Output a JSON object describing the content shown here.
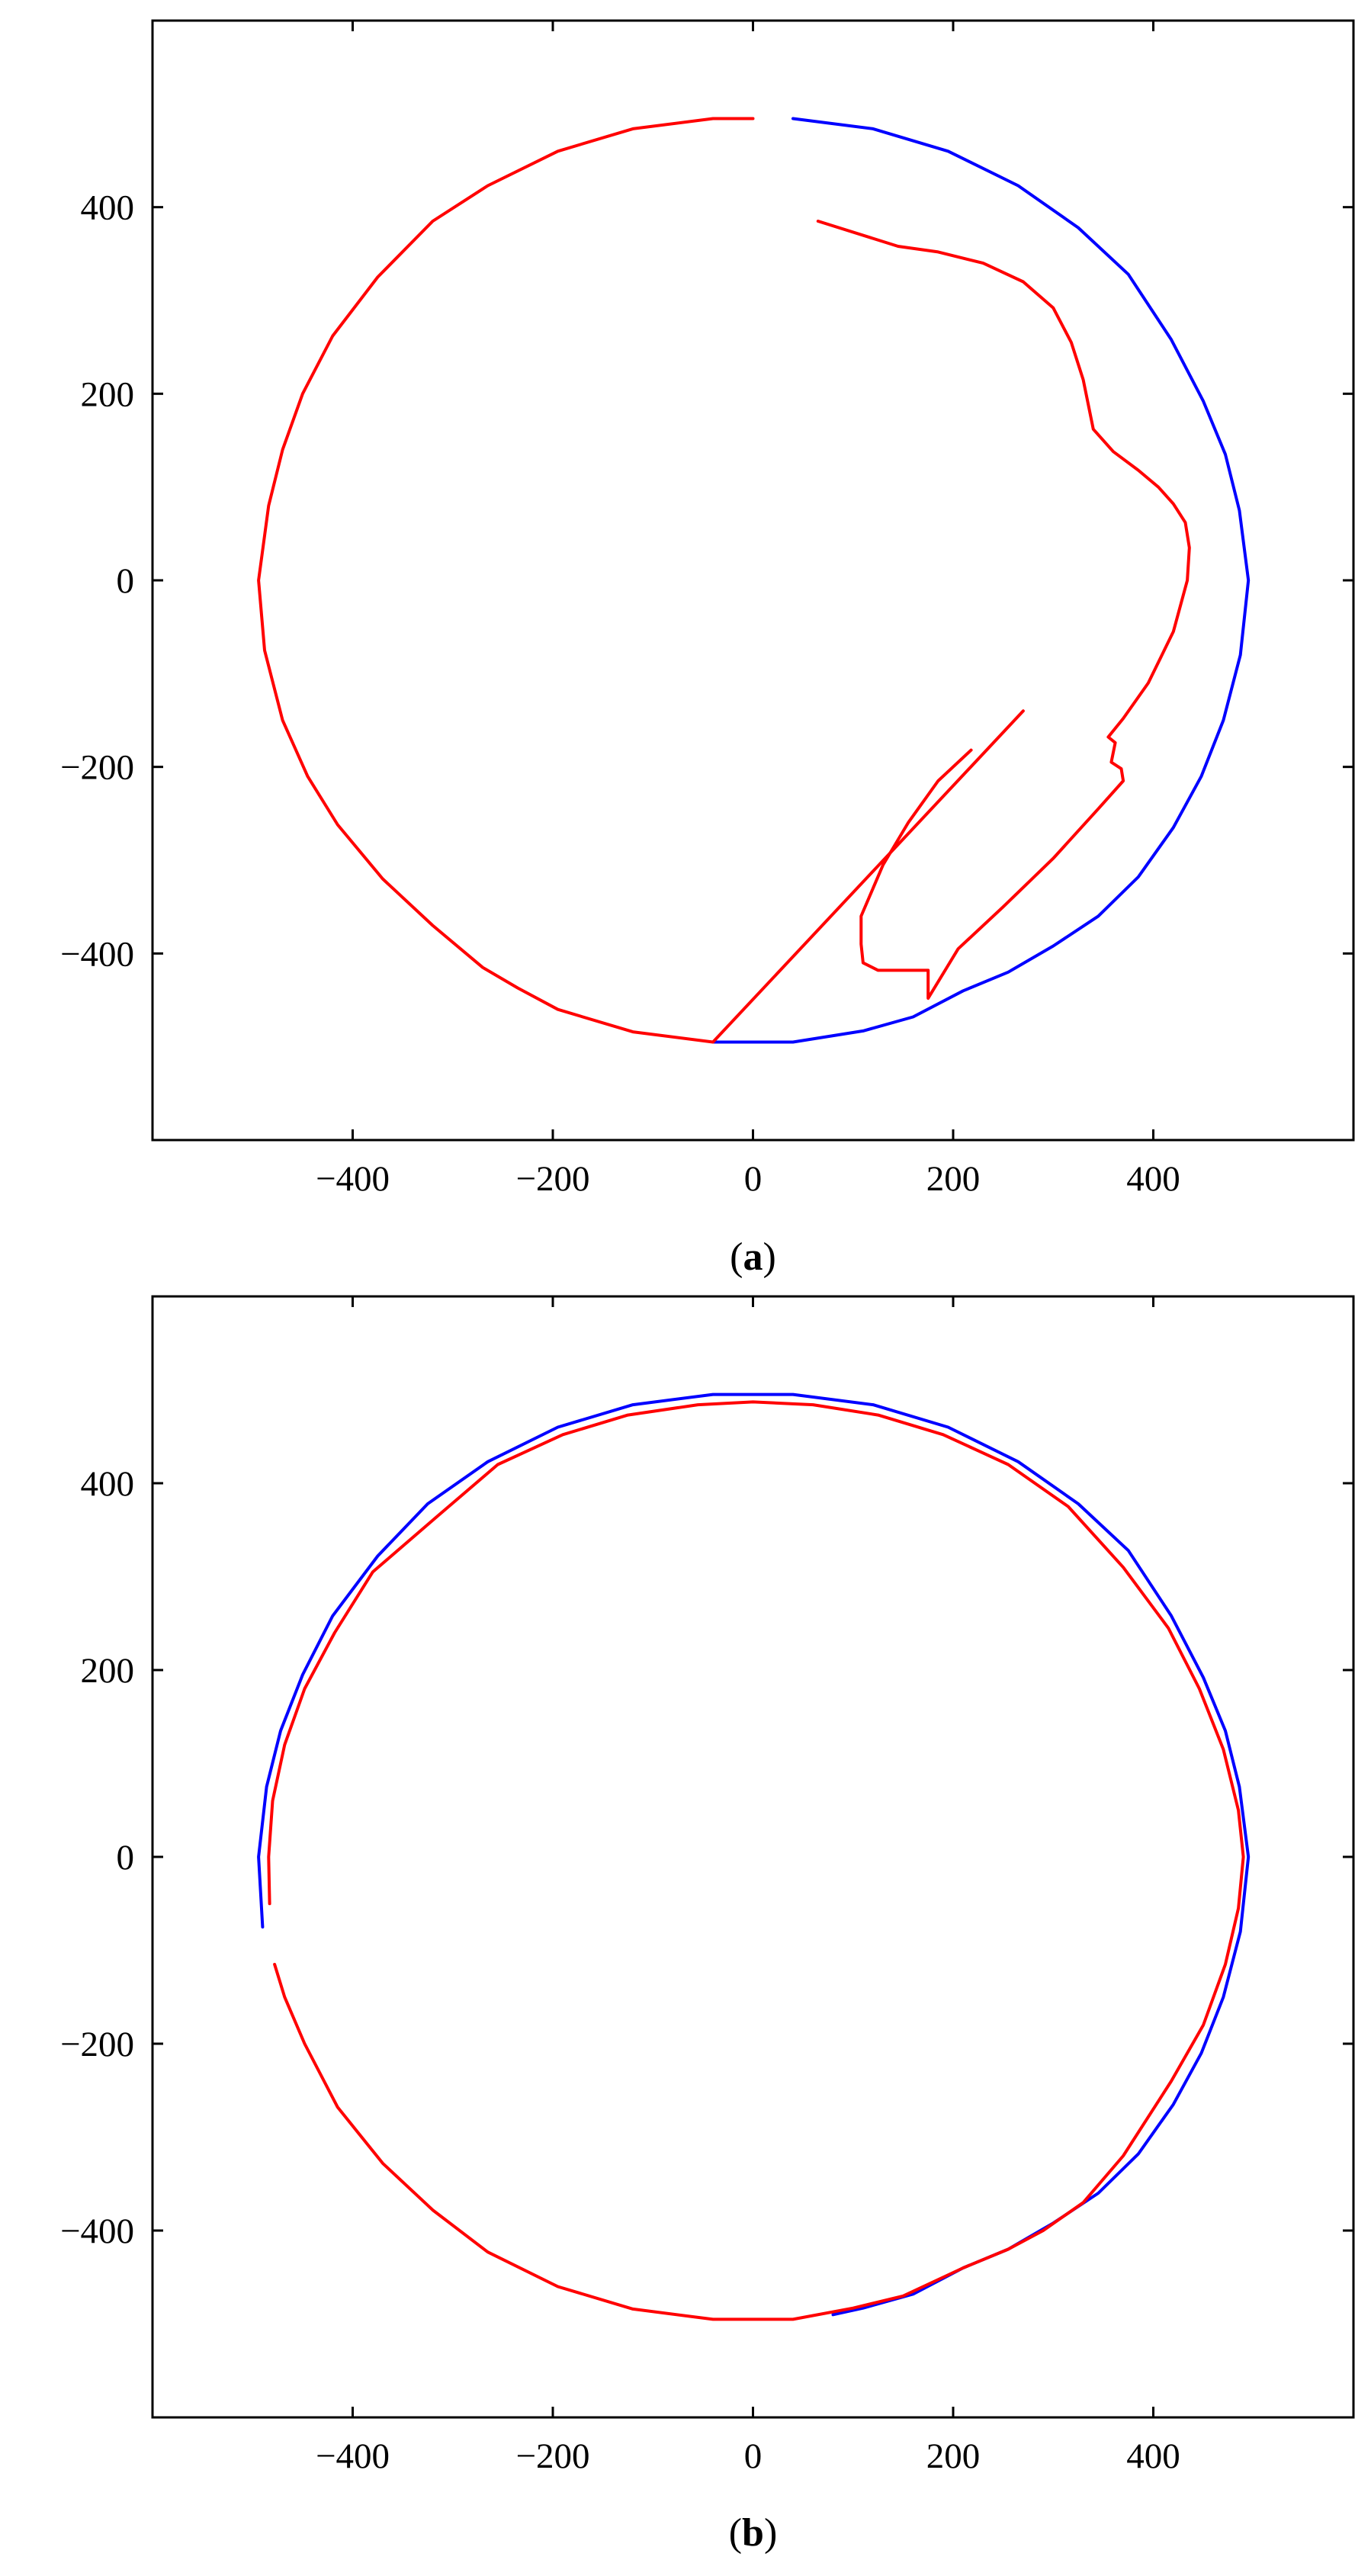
{
  "chart_data": [
    {
      "type": "line",
      "caption": {
        "open": "(",
        "letter": "a",
        "close": ")"
      },
      "xlim": [
        -600,
        600
      ],
      "ylim": [
        -600,
        600
      ],
      "x_ticks": [
        -400,
        -200,
        0,
        200,
        400
      ],
      "y_ticks": [
        -400,
        -200,
        0,
        200,
        400
      ],
      "x_tick_labels": [
        "−400",
        "−200",
        "0",
        "200",
        "400"
      ],
      "y_tick_labels": [
        "−400",
        "−200",
        "0",
        "200",
        "400"
      ],
      "grid": false,
      "series": [
        {
          "color": "#0000ff",
          "points": [
            [
              40,
              495
            ],
            [
              120,
              484
            ],
            [
              195,
              460
            ],
            [
              265,
              423
            ],
            [
              325,
              378
            ],
            [
              375,
              328
            ],
            [
              418,
              258
            ],
            [
              450,
              192
            ],
            [
              472,
              135
            ],
            [
              486,
              75
            ],
            [
              495,
              0
            ],
            [
              487,
              -80
            ],
            [
              470,
              -150
            ],
            [
              448,
              -210
            ],
            [
              420,
              -265
            ],
            [
              385,
              -318
            ],
            [
              345,
              -360
            ],
            [
              300,
              -392
            ],
            [
              255,
              -420
            ],
            [
              210,
              -440
            ],
            [
              160,
              -468
            ],
            [
              110,
              -483
            ],
            [
              40,
              -495
            ],
            [
              -40,
              -495
            ]
          ]
        },
        {
          "color": "#ff0000",
          "points": [
            [
              0,
              495
            ],
            [
              -40,
              495
            ],
            [
              -120,
              484
            ],
            [
              -195,
              460
            ],
            [
              -265,
              423
            ],
            [
              -320,
              385
            ],
            [
              -375,
              325
            ],
            [
              -420,
              262
            ],
            [
              -450,
              200
            ],
            [
              -470,
              140
            ],
            [
              -484,
              80
            ],
            [
              -494,
              0
            ],
            [
              -488,
              -75
            ],
            [
              -470,
              -150
            ],
            [
              -445,
              -210
            ],
            [
              -415,
              -262
            ],
            [
              -370,
              -320
            ],
            [
              -320,
              -370
            ],
            [
              -270,
              -415
            ],
            [
              -235,
              -437
            ],
            [
              -195,
              -460
            ],
            [
              -120,
              -484
            ],
            [
              -40,
              -495
            ],
            [
              270,
              -140
            ]
          ]
        },
        {
          "color": "#ff0000",
          "points": [
            [
              65,
              385
            ],
            [
              145,
              358
            ],
            [
              185,
              352
            ],
            [
              230,
              340
            ],
            [
              270,
              320
            ],
            [
              300,
              292
            ],
            [
              318,
              255
            ],
            [
              330,
              215
            ],
            [
              340,
              162
            ],
            [
              360,
              138
            ],
            [
              385,
              118
            ],
            [
              405,
              100
            ],
            [
              420,
              82
            ],
            [
              432,
              62
            ],
            [
              436,
              35
            ],
            [
              434,
              0
            ],
            [
              420,
              -55
            ],
            [
              395,
              -110
            ],
            [
              370,
              -148
            ],
            [
              355,
              -168
            ],
            [
              362,
              -174
            ],
            [
              358,
              -195
            ],
            [
              368,
              -202
            ],
            [
              370,
              -215
            ],
            [
              345,
              -245
            ],
            [
              300,
              -298
            ],
            [
              250,
              -350
            ],
            [
              205,
              -395
            ],
            [
              175,
              -448
            ],
            [
              175,
              -418
            ],
            [
              140,
              -418
            ],
            [
              125,
              -418
            ],
            [
              110,
              -410
            ],
            [
              108,
              -390
            ],
            [
              108,
              -360
            ],
            [
              130,
              -305
            ],
            [
              155,
              -260
            ],
            [
              185,
              -215
            ],
            [
              218,
              -182
            ]
          ]
        }
      ]
    },
    {
      "type": "line",
      "caption": {
        "open": "(",
        "letter": "b",
        "close": ")"
      },
      "xlim": [
        -600,
        600
      ],
      "ylim": [
        -600,
        600
      ],
      "x_ticks": [
        -400,
        -200,
        0,
        200,
        400
      ],
      "y_ticks": [
        -400,
        -200,
        0,
        200,
        400
      ],
      "x_tick_labels": [
        "−400",
        "−200",
        "0",
        "200",
        "400"
      ],
      "y_tick_labels": [
        "−400",
        "−200",
        "0",
        "200",
        "400"
      ],
      "grid": false,
      "series": [
        {
          "color": "#0000ff",
          "points": [
            [
              -490,
              -75
            ],
            [
              -494,
              0
            ],
            [
              -486,
              75
            ],
            [
              -472,
              135
            ],
            [
              -450,
              195
            ],
            [
              -420,
              258
            ],
            [
              -375,
              322
            ],
            [
              -325,
              378
            ],
            [
              -265,
              423
            ],
            [
              -195,
              460
            ],
            [
              -120,
              484
            ],
            [
              -40,
              495
            ],
            [
              40,
              495
            ],
            [
              120,
              484
            ],
            [
              195,
              460
            ],
            [
              265,
              423
            ],
            [
              325,
              378
            ],
            [
              375,
              328
            ],
            [
              418,
              258
            ],
            [
              450,
              192
            ],
            [
              472,
              135
            ],
            [
              486,
              75
            ],
            [
              495,
              0
            ],
            [
              487,
              -80
            ],
            [
              470,
              -150
            ],
            [
              448,
              -210
            ],
            [
              420,
              -265
            ],
            [
              385,
              -318
            ],
            [
              345,
              -360
            ],
            [
              300,
              -392
            ],
            [
              255,
              -420
            ],
            [
              210,
              -440
            ],
            [
              160,
              -468
            ],
            [
              110,
              -483
            ],
            [
              80,
              -490
            ]
          ]
        },
        {
          "color": "#ff0000",
          "points": [
            [
              -483,
              -50
            ],
            [
              -484,
              0
            ],
            [
              -480,
              60
            ],
            [
              -468,
              120
            ],
            [
              -448,
              180
            ],
            [
              -418,
              240
            ],
            [
              -380,
              305
            ],
            [
              -315,
              365
            ],
            [
              -255,
              420
            ],
            [
              -190,
              452
            ],
            [
              -125,
              473
            ],
            [
              -55,
              484
            ],
            [
              0,
              487
            ],
            [
              60,
              484
            ],
            [
              125,
              473
            ],
            [
              190,
              452
            ],
            [
              255,
              420
            ],
            [
              315,
              375
            ],
            [
              370,
              310
            ],
            [
              415,
              245
            ],
            [
              446,
              180
            ],
            [
              470,
              115
            ],
            [
              485,
              50
            ],
            [
              490,
              0
            ],
            [
              485,
              -55
            ],
            [
              472,
              -115
            ],
            [
              450,
              -180
            ],
            [
              418,
              -240
            ],
            [
              370,
              -320
            ],
            [
              330,
              -370
            ],
            [
              290,
              -400
            ],
            [
              255,
              -420
            ],
            [
              210,
              -440
            ],
            [
              150,
              -470
            ],
            [
              100,
              -483
            ],
            [
              40,
              -495
            ],
            [
              -40,
              -495
            ],
            [
              -120,
              -484
            ],
            [
              -195,
              -460
            ],
            [
              -265,
              -423
            ],
            [
              -320,
              -378
            ],
            [
              -370,
              -328
            ],
            [
              -415,
              -268
            ],
            [
              -448,
              -200
            ],
            [
              -468,
              -150
            ],
            [
              -478,
              -115
            ]
          ]
        }
      ]
    }
  ]
}
